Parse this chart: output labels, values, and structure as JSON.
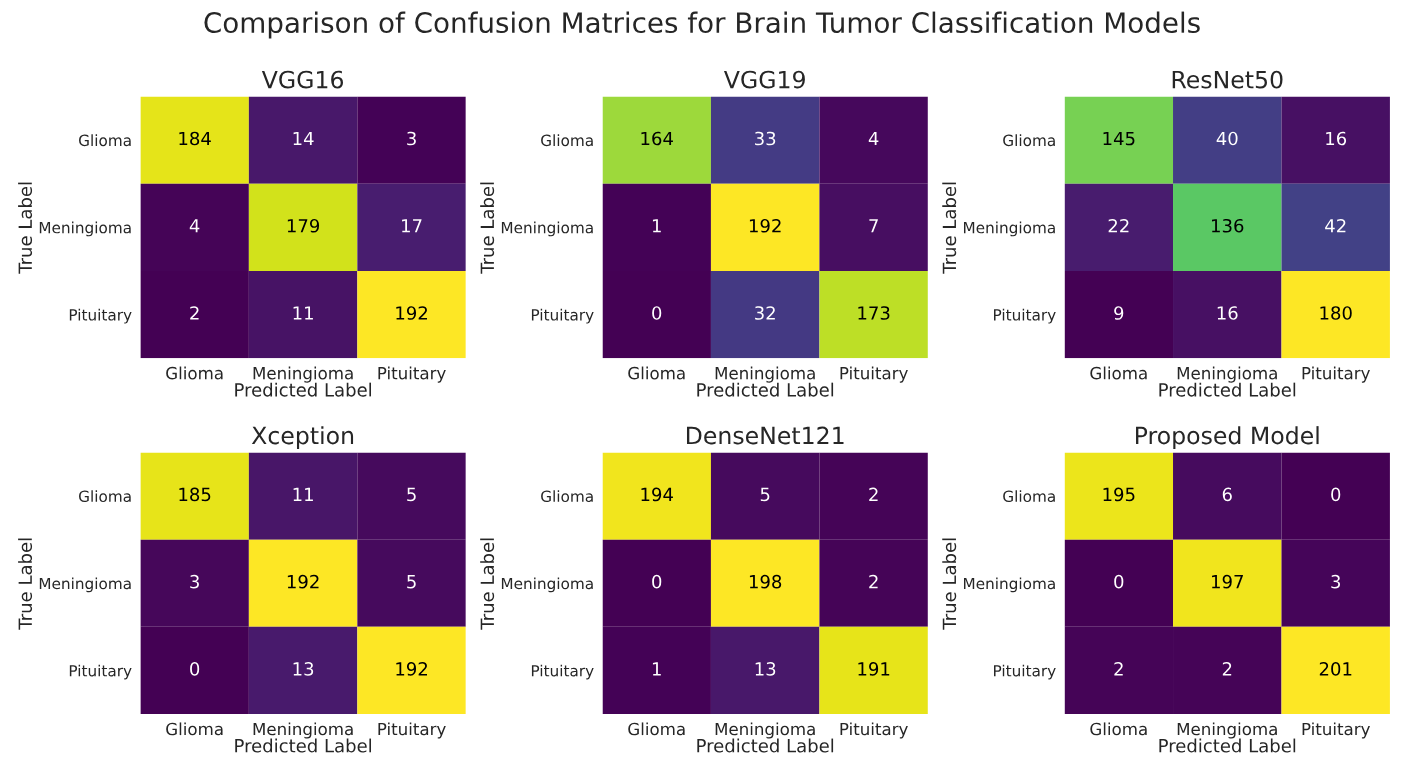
{
  "chart_data": [
    {
      "type": "heatmap",
      "title": "VGG16",
      "xlabel": "Predicted Label",
      "ylabel": "True Label",
      "annotations": [
        "Comparison of Confusion Matrices for Brain Tumor Classification Models"
      ],
      "categories": [
        "Glioma",
        "Meningioma",
        "Pituitary"
      ],
      "y_categories": [
        "Glioma",
        "Meningioma",
        "Pituitary"
      ],
      "data_labels": true,
      "cells": [
        [
          184,
          14,
          3
        ],
        [
          4,
          179,
          17
        ],
        [
          2,
          11,
          192
        ]
      ]
    },
    {
      "type": "heatmap",
      "title": "VGG19",
      "xlabel": "Predicted Label",
      "ylabel": "True Label",
      "categories": [
        "Glioma",
        "Meningioma",
        "Pituitary"
      ],
      "y_categories": [
        "Glioma",
        "Meningioma",
        "Pituitary"
      ],
      "data_labels": true,
      "cells": [
        [
          164,
          33,
          4
        ],
        [
          1,
          192,
          7
        ],
        [
          0,
          32,
          173
        ]
      ]
    },
    {
      "type": "heatmap",
      "title": "ResNet50",
      "xlabel": "Predicted Label",
      "ylabel": "True Label",
      "categories": [
        "Glioma",
        "Meningioma",
        "Pituitary"
      ],
      "y_categories": [
        "Glioma",
        "Meningioma",
        "Pituitary"
      ],
      "data_labels": true,
      "cells": [
        [
          145,
          40,
          16
        ],
        [
          22,
          136,
          42
        ],
        [
          9,
          16,
          180
        ]
      ]
    },
    {
      "type": "heatmap",
      "title": "Xception",
      "xlabel": "Predicted Label",
      "ylabel": "True Label",
      "categories": [
        "Glioma",
        "Meningioma",
        "Pituitary"
      ],
      "y_categories": [
        "Glioma",
        "Meningioma",
        "Pituitary"
      ],
      "data_labels": true,
      "cells": [
        [
          185,
          11,
          5
        ],
        [
          3,
          192,
          5
        ],
        [
          0,
          13,
          192
        ]
      ]
    },
    {
      "type": "heatmap",
      "title": "DenseNet121",
      "xlabel": "Predicted Label",
      "ylabel": "True Label",
      "categories": [
        "Glioma",
        "Meningioma",
        "Pituitary"
      ],
      "y_categories": [
        "Glioma",
        "Meningioma",
        "Pituitary"
      ],
      "data_labels": true,
      "cells": [
        [
          194,
          5,
          2
        ],
        [
          0,
          198,
          2
        ],
        [
          1,
          13,
          191
        ]
      ]
    },
    {
      "type": "heatmap",
      "title": "Proposed Model",
      "xlabel": "Predicted Label",
      "ylabel": "True Label",
      "categories": [
        "Glioma",
        "Meningioma",
        "Pituitary"
      ],
      "y_categories": [
        "Glioma",
        "Meningioma",
        "Pituitary"
      ],
      "data_labels": true,
      "cells": [
        [
          195,
          6,
          0
        ],
        [
          0,
          197,
          3
        ],
        [
          2,
          2,
          201
        ]
      ]
    }
  ]
}
